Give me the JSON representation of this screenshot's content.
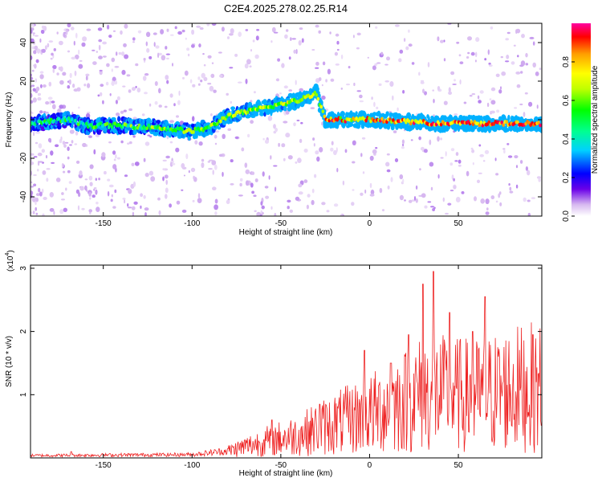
{
  "title": "C2E4.2025.278.02.25.R14",
  "chart_data": [
    {
      "type": "heatmap",
      "xlabel": "Height of straight line (km)",
      "ylabel": "Frequency (Hz)",
      "xlim": [
        -191,
        97
      ],
      "ylim": [
        -50,
        50
      ],
      "xticks": [
        -150,
        -100,
        -50,
        0,
        50
      ],
      "yticks": [
        -40,
        -20,
        0,
        20,
        40
      ],
      "colorbar": {
        "label": "Normalized spectral amplitude",
        "range": [
          0,
          1
        ],
        "ticks": [
          "0.0",
          "0.2",
          "0.4",
          "0.6",
          "0.8"
        ],
        "colormap": [
          "#ffffff",
          "#d7b8f0",
          "#6a00e8",
          "#0000ff",
          "#00d0ff",
          "#00ff90",
          "#00ff00",
          "#c0ff00",
          "#ffff00",
          "#ffa000",
          "#ff0000",
          "#ff00a0"
        ]
      },
      "track": [
        {
          "x": -191,
          "y": -2
        },
        {
          "x": -170,
          "y": 0
        },
        {
          "x": -160,
          "y": -3
        },
        {
          "x": -140,
          "y": -3
        },
        {
          "x": -120,
          "y": -4
        },
        {
          "x": -100,
          "y": -6
        },
        {
          "x": -90,
          "y": -4
        },
        {
          "x": -80,
          "y": 2
        },
        {
          "x": -70,
          "y": 4
        },
        {
          "x": -60,
          "y": 6
        },
        {
          "x": -50,
          "y": 8
        },
        {
          "x": -40,
          "y": 10
        },
        {
          "x": -30,
          "y": 14
        },
        {
          "x": -25,
          "y": 0
        },
        {
          "x": 0,
          "y": 0
        },
        {
          "x": 20,
          "y": -1
        },
        {
          "x": 40,
          "y": -2
        },
        {
          "x": 60,
          "y": -2
        },
        {
          "x": 80,
          "y": -2
        },
        {
          "x": 97,
          "y": -2
        }
      ]
    },
    {
      "type": "line",
      "xlabel": "Height of straight line (km)",
      "ylabel": "SNR (10 * v/v)",
      "y_multiplier": "(x10",
      "y_multiplier_exp": "4",
      "xlim": [
        -191,
        97
      ],
      "ylim": [
        0,
        3.05
      ],
      "xticks": [
        -150,
        -100,
        -50,
        0,
        50
      ],
      "yticks": [
        1,
        2,
        3
      ],
      "series": [
        {
          "color": "#ee2222",
          "envelope": [
            {
              "x": -191,
              "y": 0.05
            },
            {
              "x": -150,
              "y": 0.06
            },
            {
              "x": -100,
              "y": 0.07
            },
            {
              "x": -80,
              "y": 0.15
            },
            {
              "x": -60,
              "y": 0.35
            },
            {
              "x": -40,
              "y": 0.5
            },
            {
              "x": -20,
              "y": 0.75
            },
            {
              "x": 0,
              "y": 0.95
            },
            {
              "x": 20,
              "y": 1.25
            },
            {
              "x": 30,
              "y": 1.4
            },
            {
              "x": 40,
              "y": 1.4
            },
            {
              "x": 60,
              "y": 1.35
            },
            {
              "x": 80,
              "y": 1.5
            },
            {
              "x": 97,
              "y": 1.55
            }
          ],
          "peaks": [
            {
              "x": -168,
              "y": 0.1
            },
            {
              "x": -55,
              "y": 0.6
            },
            {
              "x": -28,
              "y": 0.85
            },
            {
              "x": -3,
              "y": 1.7
            },
            {
              "x": 12,
              "y": 1.5
            },
            {
              "x": 22,
              "y": 1.95
            },
            {
              "x": 30,
              "y": 2.75
            },
            {
              "x": 36,
              "y": 2.95
            },
            {
              "x": 45,
              "y": 2.3
            },
            {
              "x": 58,
              "y": 2.0
            },
            {
              "x": 65,
              "y": 2.55
            },
            {
              "x": 92,
              "y": 1.95
            }
          ]
        }
      ]
    }
  ]
}
